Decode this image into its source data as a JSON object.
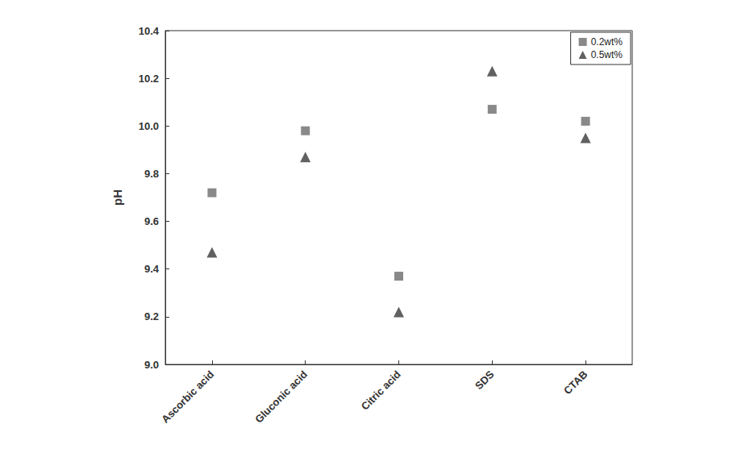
{
  "chart_data": {
    "type": "scatter",
    "y_label": "pH",
    "categories": [
      "Ascorbic acid",
      "Gluconic acid",
      "Citric acid",
      "SDS",
      "CTAB"
    ],
    "series": [
      {
        "name": "0.2wt%",
        "color": "#6b6b6b",
        "marker": "square",
        "values": [
          9.72,
          9.98,
          9.37,
          10.07,
          10.02
        ]
      },
      {
        "name": "0.5wt%",
        "color": "#3a3a3a",
        "marker": "triangle",
        "values": [
          9.47,
          9.87,
          9.22,
          10.23,
          9.95
        ]
      }
    ],
    "ylim": [
      9,
      10.4
    ],
    "yticks": [
      {
        "value": 9,
        "label": "9.0"
      },
      9.2,
      9.4,
      9.6,
      9.8,
      {
        "value": 10,
        "label": "10.0"
      },
      10.2,
      10.4
    ],
    "grid": false,
    "legend": "upper right"
  }
}
